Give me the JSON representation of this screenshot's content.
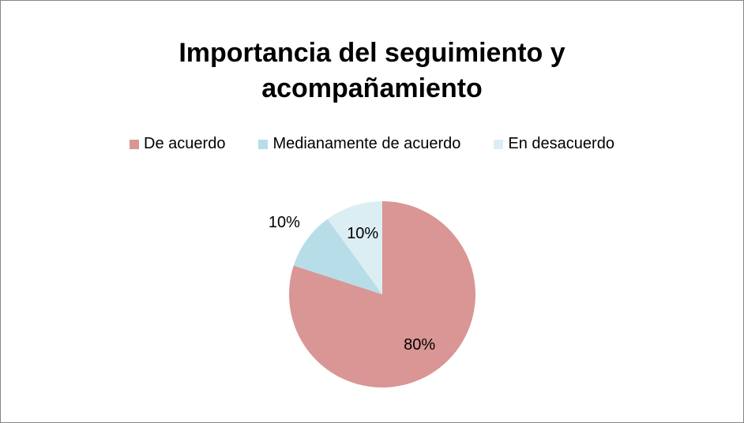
{
  "chart_data": {
    "type": "pie",
    "title": "Importancia del seguimiento y acompañamiento",
    "categories": [
      "De acuerdo",
      "Medianamente de acuerdo",
      "En desacuerdo"
    ],
    "values": [
      80,
      10,
      10
    ],
    "value_labels": [
      "80%",
      "10%",
      "10%"
    ],
    "colors": [
      "#d99694",
      "#b7dde8",
      "#dbeef4"
    ],
    "legend": "top"
  }
}
